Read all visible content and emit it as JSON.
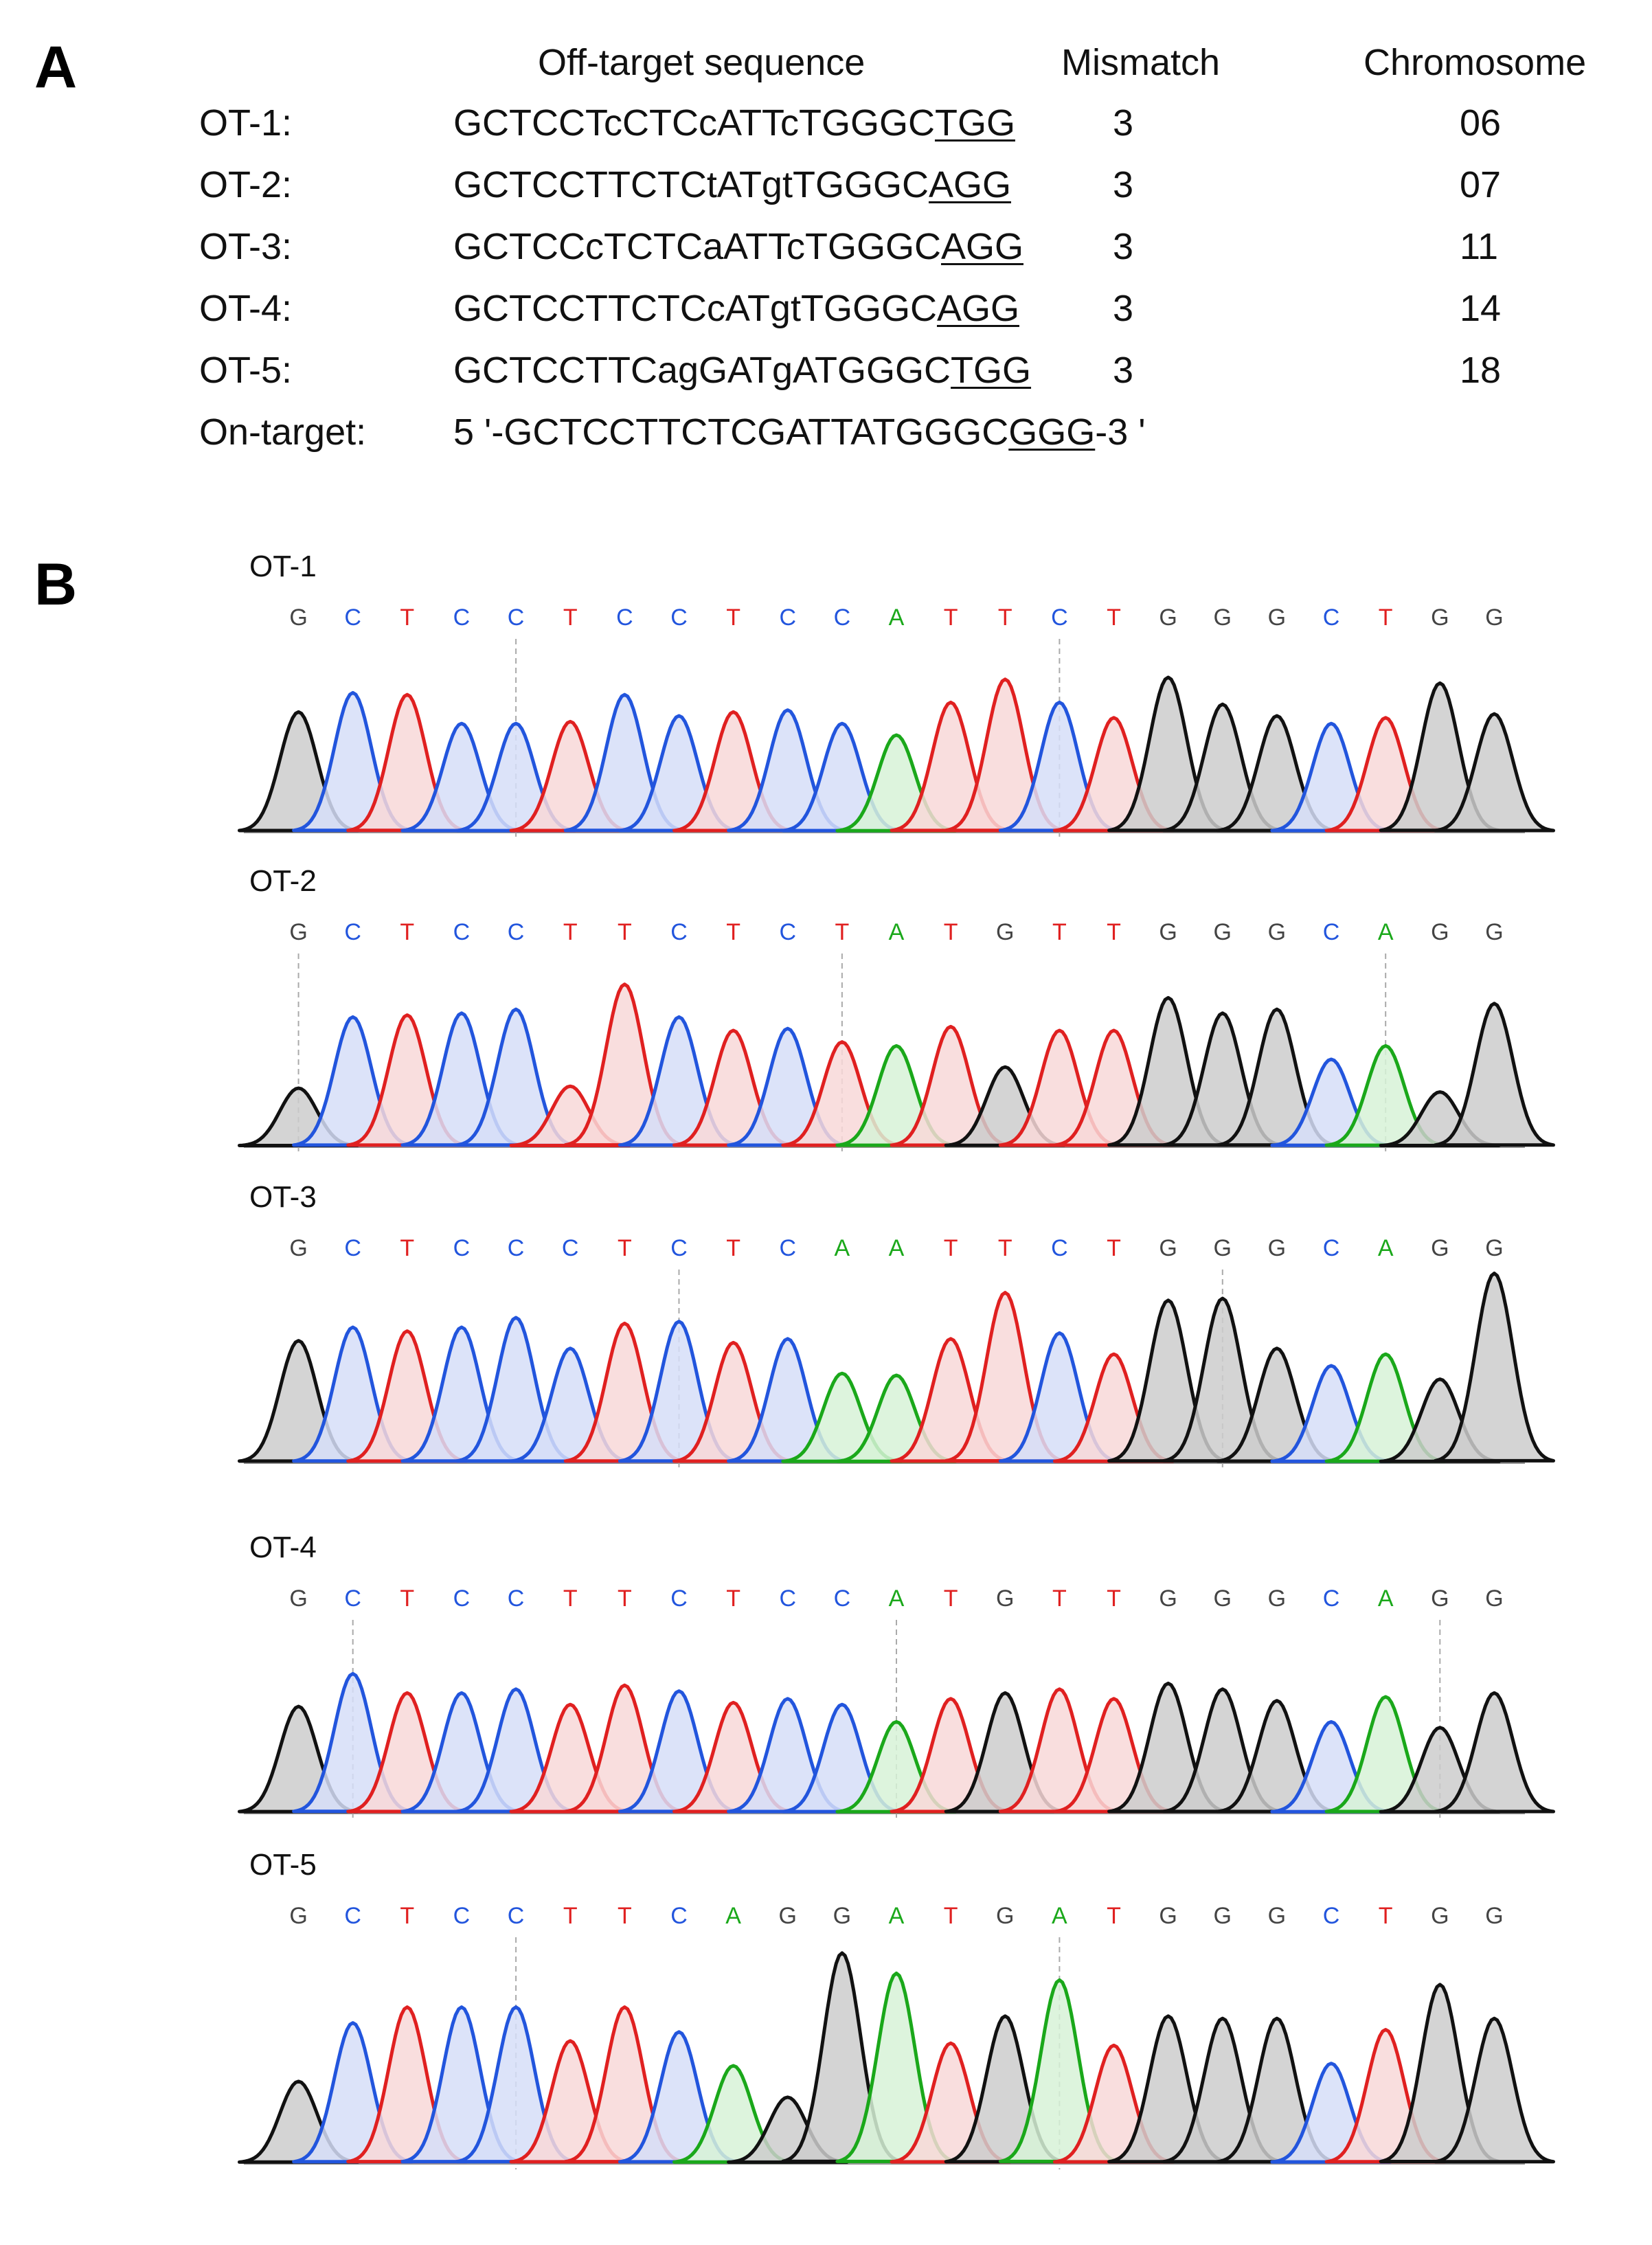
{
  "panel_a": {
    "letter": "A",
    "headers": {
      "sequence": "Off-target sequence",
      "mismatch": "Mismatch",
      "chromosome": "Chromosome"
    },
    "rows": [
      {
        "name": "OT-1:",
        "seq_pre": "GCTCCTcCTCcATTcTGGGC",
        "pam": "TGG",
        "seq_post": "",
        "mismatch": "3",
        "chromosome": "06"
      },
      {
        "name": "OT-2:",
        "seq_pre": "GCTCCTTCTCtATgtTGGGC",
        "pam": "AGG",
        "seq_post": "",
        "mismatch": "3",
        "chromosome": "07"
      },
      {
        "name": "OT-3:",
        "seq_pre": "GCTCCcTCTCaATTcTGGGC",
        "pam": "AGG",
        "seq_post": "",
        "mismatch": "3",
        "chromosome": "11"
      },
      {
        "name": "OT-4:",
        "seq_pre": "GCTCCTTCTCcATgtTGGGC",
        "pam": "AGG",
        "seq_post": "",
        "mismatch": "3",
        "chromosome": "14"
      },
      {
        "name": "OT-5:",
        "seq_pre": "GCTCCTTCagGATgATGGGC",
        "pam": "TGG",
        "seq_post": "",
        "mismatch": "3",
        "chromosome": "18"
      },
      {
        "name": "On-target:",
        "seq_pre": "5 '-GCTCCTTCTCGATTATGGGC",
        "pam": "GGG",
        "seq_post": "-3 '",
        "mismatch": "",
        "chromosome": ""
      }
    ]
  },
  "panel_b": {
    "letter": "B",
    "colors": {
      "A": "#1aa81a",
      "C": "#2255dd",
      "G": "#111111",
      "T": "#e02020"
    },
    "fills": {
      "A": "#d7f2d7",
      "C": "#d6def8",
      "G": "#cccccc",
      "T": "#f8d8d8"
    },
    "traces": [
      {
        "label": "OT-1",
        "bases": [
          "G",
          "C",
          "T",
          "C",
          "C",
          "T",
          "C",
          "C",
          "T",
          "C",
          "C",
          "A",
          "T",
          "T",
          "C",
          "T",
          "G",
          "G",
          "G",
          "C",
          "T",
          "G",
          "G"
        ],
        "heights": [
          0.62,
          0.72,
          0.71,
          0.56,
          0.56,
          0.57,
          0.71,
          0.6,
          0.62,
          0.63,
          0.56,
          0.5,
          0.67,
          0.79,
          0.67,
          0.59,
          0.8,
          0.66,
          0.6,
          0.56,
          0.59,
          0.77,
          0.61
        ]
      },
      {
        "label": "OT-2",
        "bases": [
          "G",
          "C",
          "T",
          "C",
          "C",
          "T",
          "T",
          "C",
          "T",
          "C",
          "T",
          "A",
          "T",
          "G",
          "T",
          "T",
          "G",
          "G",
          "G",
          "C",
          "A",
          "G",
          "G"
        ],
        "heights": [
          0.3,
          0.67,
          0.68,
          0.69,
          0.71,
          0.31,
          0.84,
          0.67,
          0.6,
          0.61,
          0.54,
          0.52,
          0.62,
          0.41,
          0.6,
          0.6,
          0.77,
          0.69,
          0.71,
          0.45,
          0.52,
          0.28,
          0.74
        ]
      },
      {
        "label": "OT-3",
        "bases": [
          "G",
          "C",
          "T",
          "C",
          "C",
          "C",
          "T",
          "C",
          "T",
          "C",
          "A",
          "A",
          "T",
          "T",
          "C",
          "T",
          "G",
          "G",
          "G",
          "C",
          "A",
          "G",
          "G"
        ],
        "heights": [
          0.63,
          0.7,
          0.68,
          0.7,
          0.75,
          0.59,
          0.72,
          0.73,
          0.62,
          0.64,
          0.46,
          0.45,
          0.64,
          0.88,
          0.67,
          0.56,
          0.84,
          0.85,
          0.59,
          0.5,
          0.56,
          0.43,
          0.98
        ]
      },
      {
        "label": "OT-4",
        "bases": [
          "G",
          "C",
          "T",
          "C",
          "C",
          "T",
          "T",
          "C",
          "T",
          "C",
          "C",
          "A",
          "T",
          "G",
          "T",
          "T",
          "G",
          "G",
          "G",
          "C",
          "A",
          "G",
          "G"
        ],
        "heights": [
          0.55,
          0.72,
          0.62,
          0.62,
          0.64,
          0.56,
          0.66,
          0.63,
          0.57,
          0.59,
          0.56,
          0.47,
          0.59,
          0.62,
          0.64,
          0.59,
          0.67,
          0.64,
          0.58,
          0.47,
          0.6,
          0.44,
          0.62
        ]
      },
      {
        "label": "OT-5",
        "bases": [
          "G",
          "C",
          "T",
          "C",
          "C",
          "T",
          "T",
          "C",
          "A",
          "G",
          "G",
          "A",
          "T",
          "G",
          "A",
          "T",
          "G",
          "G",
          "G",
          "C",
          "T",
          "G",
          "G"
        ],
        "heights": [
          0.36,
          0.62,
          0.69,
          0.69,
          0.69,
          0.54,
          0.69,
          0.58,
          0.43,
          0.29,
          0.93,
          0.84,
          0.53,
          0.65,
          0.81,
          0.52,
          0.65,
          0.64,
          0.64,
          0.44,
          0.59,
          0.79,
          0.64
        ]
      }
    ]
  }
}
